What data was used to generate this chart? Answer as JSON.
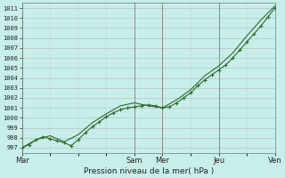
{
  "title": "",
  "xlabel": "Pression niveau de la mer( hPa )",
  "bg_color": "#c8eeea",
  "grid_color": "#999999",
  "line_color": "#2d6a2d",
  "ylim": [
    996.5,
    1011.5
  ],
  "yticks": [
    997,
    998,
    999,
    1000,
    1001,
    1002,
    1003,
    1004,
    1005,
    1006,
    1007,
    1008,
    1009,
    1010,
    1011
  ],
  "xlim": [
    0,
    216
  ],
  "x_tick_pos": [
    0,
    96,
    120,
    168,
    216
  ],
  "x_tick_labels": [
    "Mar",
    "Sam",
    "Mer",
    "Jeu",
    "Ven"
  ],
  "line1_x": [
    0,
    6,
    12,
    18,
    24,
    30,
    36,
    42,
    48,
    54,
    60,
    66,
    72,
    78,
    84,
    90,
    96,
    102,
    108,
    114,
    120,
    126,
    132,
    138,
    144,
    150,
    156,
    162,
    168,
    174,
    180,
    186,
    192,
    198,
    204,
    210,
    216
  ],
  "line1_y": [
    997.0,
    997.3,
    997.8,
    998.1,
    997.9,
    997.7,
    997.5,
    997.2,
    997.8,
    998.5,
    999.1,
    999.6,
    1000.1,
    1000.5,
    1000.8,
    1001.0,
    1001.1,
    1001.2,
    1001.3,
    1001.2,
    1001.0,
    1001.1,
    1001.5,
    1002.0,
    1002.5,
    1003.2,
    1003.8,
    1004.3,
    1004.8,
    1005.3,
    1006.0,
    1006.8,
    1007.6,
    1008.4,
    1009.2,
    1010.1,
    1011.0
  ],
  "line2_x": [
    0,
    12,
    24,
    36,
    48,
    60,
    72,
    84,
    96,
    108,
    120,
    132,
    144,
    156,
    168,
    180,
    192,
    204,
    216
  ],
  "line2_y": [
    997.0,
    997.8,
    998.2,
    997.6,
    998.3,
    999.5,
    1000.4,
    1001.2,
    1001.5,
    1001.2,
    1001.0,
    1001.8,
    1002.8,
    1004.2,
    1005.2,
    1006.5,
    1008.2,
    1009.8,
    1011.2
  ]
}
